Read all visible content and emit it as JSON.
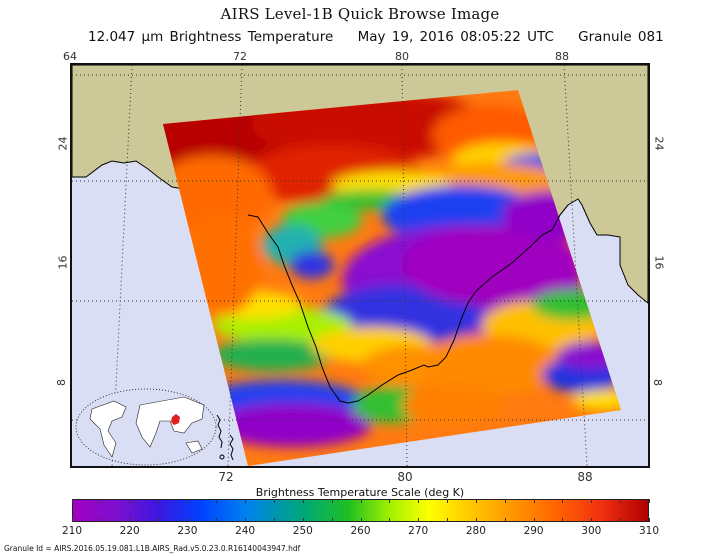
{
  "header": {
    "title": "AIRS Level-1B Quick Browse Image",
    "wavelength": "12.047 µm Brightness Temperature",
    "datetime": "May 19, 2016 08:05:22 UTC",
    "granule": "Granule 081"
  },
  "map": {
    "lon_labels_top": [
      "64",
      "72",
      "80",
      "88"
    ],
    "lon_labels_bottom": [
      "72",
      "80",
      "88"
    ],
    "lat_labels_left": [
      "24",
      "16",
      "8"
    ],
    "lat_labels_right": [
      "24",
      "16",
      "8"
    ],
    "colors": {
      "land": "#cdc898",
      "ocean": "#d9def5",
      "coastline": "#000000",
      "gridline": "#333333"
    },
    "inset": {
      "description": "world-locator-map",
      "highlight_color": "#e02020"
    }
  },
  "colorbar": {
    "title": "Brightness Temperature Scale (deg K)",
    "min": 210,
    "max": 310,
    "tick_labels": [
      "210",
      "220",
      "230",
      "240",
      "250",
      "260",
      "270",
      "280",
      "290",
      "300",
      "310"
    ],
    "stops": [
      "#a000c0",
      "#3a18e0",
      "#0040ff",
      "#00a878",
      "#20c020",
      "#a0f000",
      "#ffff00",
      "#ff9a00",
      "#ff6400",
      "#b00000"
    ]
  },
  "footer": {
    "granule_id": "Granule Id = AIRS.2016.05.19.081.L1B.AIRS_Rad.v5.0.23.0.R16140043947.hdf"
  }
}
